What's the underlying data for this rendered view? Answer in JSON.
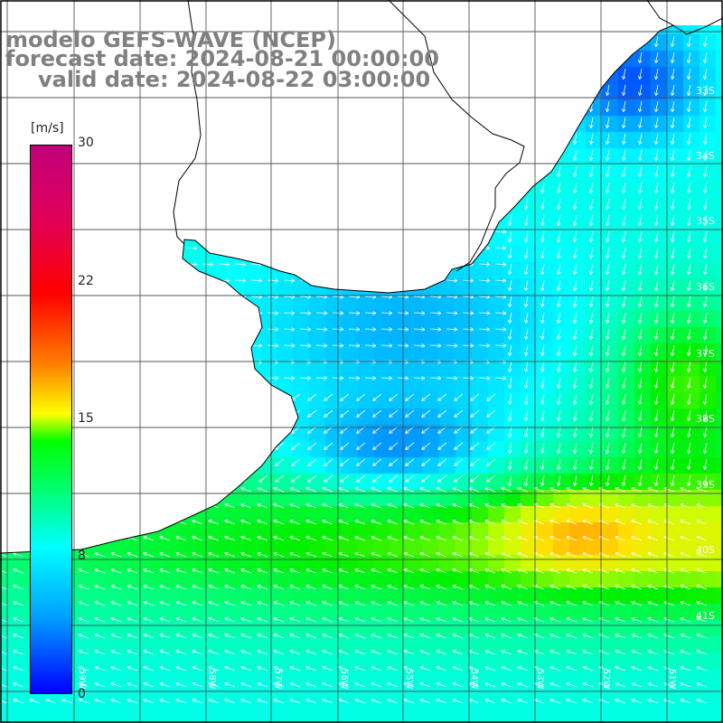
{
  "title": {
    "line1": "modelo GEFS-WAVE (NCEP)",
    "line2": "forecast date: 2024-08-21 00:00:00",
    "line3": "valid date: 2024-08-22 03:00:00"
  },
  "colorbar": {
    "unit": "[m/s]",
    "ticks": [
      "30",
      "22",
      "15",
      "8",
      "0"
    ],
    "tick_values": [
      30,
      22,
      15,
      8,
      0
    ],
    "colors": [
      "#0000ff",
      "#00a0ff",
      "#00ffff",
      "#00ff66",
      "#00ff00",
      "#ffff00",
      "#ff8000",
      "#ff0000",
      "#c0007a"
    ]
  },
  "lat_labels": [
    "33S",
    "34S",
    "35S",
    "36S",
    "37S",
    "38S",
    "39S",
    "40S",
    "41S"
  ],
  "lon_labels": [
    "59W",
    "58W",
    "57W",
    "56W",
    "55W",
    "54W",
    "53W",
    "52W",
    "51W"
  ],
  "colors": {
    "background": "#ffffff",
    "title_text": "#808080",
    "grid": "#555555",
    "coast": "#000000",
    "arrows": "#ffffff"
  }
}
